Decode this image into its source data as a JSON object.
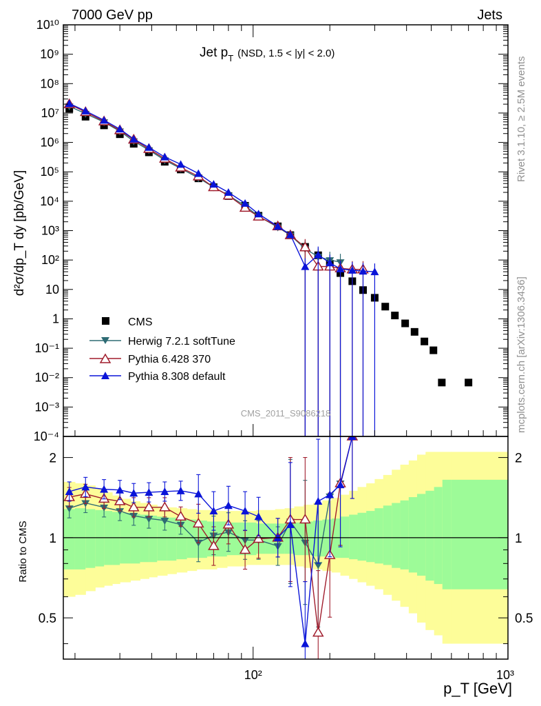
{
  "header": {
    "left": "7000 GeV pp",
    "right": "Jets",
    "title_main": "Jet p",
    "title_sub": "T",
    "title_rest": "(NSD, 1.5 < |y| < 2.0)",
    "watermark": "CMS_2011_S9086218",
    "side_rivet": "Rivet 3.1.10, ≥ 2.5M events",
    "side_site": "mcplots.cern.ch [arXiv:1306.3436]"
  },
  "axes": {
    "ylabel_main": "d²σ/dp_T dy [pb/GeV]",
    "ylabel_ratio": "Ratio to CMS",
    "xlabel": "p_T [GeV]",
    "x_tick_100": "10²",
    "x_tick_1000": "10³",
    "main_ticks": [
      "10⁻⁴",
      "10⁻³",
      "10⁻²",
      "10⁻¹",
      "1",
      "10",
      "10²",
      "10³",
      "10⁴",
      "10⁵",
      "10⁶",
      "10⁷",
      "10⁸",
      "10⁹",
      "10¹⁰"
    ],
    "ratio_ticks": [
      "0.5",
      "1",
      "2"
    ]
  },
  "legend": {
    "cms": "CMS",
    "herwig": "Herwig 7.2.1 softTune",
    "pythia6": "Pythia 6.428 370",
    "pythia8": "Pythia 8.308 default"
  },
  "colors": {
    "cms": "#000000",
    "herwig": "#2e6b74",
    "pythia6": "#a01c2c",
    "pythia8": "#0a14d8",
    "band_inner": "#9dfb98",
    "band_outer": "#fdfd99"
  },
  "chart_data": {
    "type": "scatter",
    "title": "Jet p_T (NSD, 1.5 < |y| < 2.0)",
    "xlabel": "p_T [GeV]",
    "ylabel": "d²σ/dp_T dy [pb/GeV]",
    "xscale": "log",
    "yscale": "log",
    "xlim": [
      18,
      1000
    ],
    "ylim": [
      0.0001,
      10000000000
    ],
    "ratio_ylim": [
      0.35,
      2.4
    ],
    "series": [
      {
        "name": "CMS",
        "x": [
          19,
          22,
          26,
          30,
          34,
          39,
          45,
          52,
          61,
          70,
          80,
          93,
          105,
          125,
          140,
          160,
          180,
          200,
          220,
          245,
          270,
          300,
          330,
          360,
          395,
          430,
          470,
          510,
          550,
          700
        ],
        "y": [
          14000000,
          7500000,
          3800000,
          1900000,
          900000,
          460000,
          220000,
          120000,
          60000,
          30000,
          15000,
          7000,
          3200,
          1400,
          700,
          280,
          145,
          75,
          36,
          19,
          9.5,
          5.2,
          2.6,
          1.3,
          0.7,
          0.36,
          0.17,
          0.085,
          0.0068,
          0.0068
        ]
      },
      {
        "name": "Herwig 7.2.1 softTune",
        "x": [
          19,
          22,
          26,
          30,
          34,
          39,
          45,
          52,
          61,
          70,
          80,
          93,
          105,
          125,
          140,
          160,
          180,
          200,
          220
        ],
        "y": [
          17000000,
          9500000,
          4900000,
          2400000,
          1100000,
          550000,
          250000,
          130000,
          62000,
          30000,
          15800,
          7000,
          3100,
          1300,
          700,
          240,
          130,
          100,
          85
        ]
      },
      {
        "name": "Pythia 6.428 370",
        "x": [
          19,
          22,
          26,
          30,
          34,
          39,
          45,
          52,
          61,
          70,
          80,
          93,
          105,
          125,
          140,
          160,
          180,
          200,
          220,
          245,
          270
        ],
        "y": [
          20000000,
          10800000,
          5200000,
          2600000,
          1250000,
          600000,
          280000,
          140000,
          70000,
          30000,
          15600,
          6000,
          3000,
          1400,
          700,
          270,
          60,
          60,
          52,
          48,
          48
        ]
      },
      {
        "name": "Pythia 8.308 default",
        "x": [
          19,
          22,
          26,
          30,
          34,
          39,
          45,
          52,
          61,
          70,
          80,
          93,
          105,
          125,
          140,
          160,
          180,
          200,
          220,
          245,
          270,
          300
        ],
        "y": [
          21000000,
          11800000,
          5700000,
          2850000,
          1300000,
          680000,
          320000,
          180000,
          88000,
          38000,
          20000,
          8500,
          3700,
          1400,
          730,
          60,
          150,
          80,
          50,
          45,
          42,
          40
        ]
      }
    ],
    "ratio_series": [
      {
        "name": "Herwig 7.2.1 softTune",
        "x": [
          19,
          22,
          26,
          30,
          34,
          39,
          45,
          52,
          61,
          70,
          80,
          93,
          105,
          125,
          140,
          160,
          180,
          200,
          220
        ],
        "y": [
          1.29,
          1.35,
          1.3,
          1.26,
          1.21,
          1.18,
          1.16,
          1.12,
          0.96,
          1.02,
          1.05,
          0.98,
          0.98,
          0.93,
          1.15,
          0.96,
          0.79,
          1.43,
          1.6
        ]
      },
      {
        "name": "Pythia 6.428 370",
        "x": [
          19,
          22,
          26,
          30,
          34,
          39,
          45,
          52,
          61,
          70,
          80,
          93,
          105,
          125,
          140,
          160,
          180,
          200,
          220,
          245
        ],
        "y": [
          1.42,
          1.46,
          1.4,
          1.37,
          1.3,
          1.3,
          1.3,
          1.2,
          1.13,
          0.93,
          1.12,
          0.9,
          0.99,
          1.0,
          1.17,
          1.17,
          0.44,
          0.86,
          1.6,
          2.4
        ]
      },
      {
        "name": "Pythia 8.308 default",
        "x": [
          19,
          22,
          26,
          30,
          34,
          39,
          45,
          52,
          61,
          70,
          80,
          93,
          105,
          125,
          140,
          160,
          180,
          200,
          220,
          245
        ],
        "y": [
          1.49,
          1.55,
          1.52,
          1.51,
          1.47,
          1.48,
          1.49,
          1.5,
          1.46,
          1.26,
          1.32,
          1.26,
          1.2,
          1.0,
          1.12,
          0.4,
          1.37,
          1.45,
          1.58,
          2.4
        ]
      }
    ],
    "ratio_band": {
      "x_edges": [
        18,
        20,
        22,
        24,
        26,
        28,
        30,
        33,
        36,
        39,
        42,
        46,
        50,
        55,
        60,
        66,
        72,
        79,
        86,
        94,
        103,
        112,
        122,
        133,
        145,
        158,
        172,
        187,
        203,
        220,
        238,
        257,
        278,
        300,
        324,
        350,
        378,
        408,
        440,
        475,
        513,
        553,
        600,
        1000
      ],
      "inner_low": [
        0.76,
        0.76,
        0.77,
        0.78,
        0.79,
        0.79,
        0.8,
        0.8,
        0.81,
        0.81,
        0.82,
        0.82,
        0.83,
        0.84,
        0.84,
        0.85,
        0.85,
        0.86,
        0.86,
        0.86,
        0.87,
        0.87,
        0.87,
        0.87,
        0.86,
        0.86,
        0.85,
        0.85,
        0.84,
        0.84,
        0.83,
        0.82,
        0.81,
        0.8,
        0.79,
        0.77,
        0.76,
        0.74,
        0.72,
        0.69,
        0.67,
        0.64,
        0.64
      ],
      "inner_high": [
        1.28,
        1.29,
        1.28,
        1.27,
        1.26,
        1.25,
        1.24,
        1.23,
        1.22,
        1.21,
        1.2,
        1.19,
        1.18,
        1.17,
        1.16,
        1.15,
        1.15,
        1.14,
        1.14,
        1.14,
        1.13,
        1.13,
        1.13,
        1.14,
        1.14,
        1.15,
        1.16,
        1.17,
        1.18,
        1.2,
        1.22,
        1.24,
        1.26,
        1.29,
        1.32,
        1.35,
        1.38,
        1.42,
        1.46,
        1.5,
        1.55,
        1.65,
        1.65
      ],
      "outer_low": [
        0.6,
        0.61,
        0.63,
        0.65,
        0.66,
        0.67,
        0.68,
        0.69,
        0.7,
        0.71,
        0.72,
        0.73,
        0.74,
        0.75,
        0.76,
        0.76,
        0.77,
        0.78,
        0.78,
        0.79,
        0.79,
        0.79,
        0.79,
        0.79,
        0.78,
        0.77,
        0.76,
        0.75,
        0.74,
        0.72,
        0.7,
        0.68,
        0.66,
        0.64,
        0.61,
        0.58,
        0.55,
        0.52,
        0.48,
        0.45,
        0.43,
        0.4,
        0.4
      ],
      "outer_high": [
        1.62,
        1.6,
        1.57,
        1.53,
        1.48,
        1.44,
        1.4,
        1.37,
        1.35,
        1.33,
        1.31,
        1.3,
        1.29,
        1.28,
        1.27,
        1.27,
        1.26,
        1.26,
        1.26,
        1.26,
        1.27,
        1.27,
        1.28,
        1.29,
        1.31,
        1.33,
        1.35,
        1.38,
        1.41,
        1.45,
        1.5,
        1.55,
        1.6,
        1.66,
        1.72,
        1.8,
        1.88,
        1.95,
        2.05,
        2.1,
        2.1,
        2.1,
        2.1
      ]
    },
    "legend_position": "bottom-left"
  }
}
